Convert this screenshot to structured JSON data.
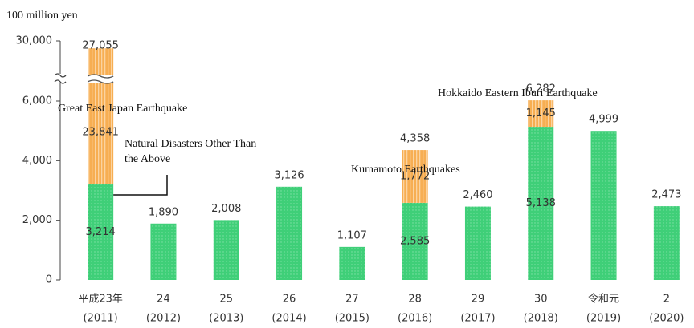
{
  "chart_data": {
    "type": "bar",
    "unit_label": "100 million yen",
    "categories": [
      "平成23年",
      "24",
      "25",
      "26",
      "27",
      "28",
      "29",
      "30",
      "令和元",
      "2"
    ],
    "years": [
      "(2011)",
      "(2012)",
      "(2013)",
      "(2014)",
      "(2015)",
      "(2016)",
      "(2017)",
      "(2018)",
      "(2019)",
      "(2020)"
    ],
    "series": [
      {
        "name": "Natural Disasters Other Than the Above",
        "color": "#3fcf78",
        "values": [
          3214,
          1890,
          2008,
          3126,
          1107,
          2585,
          2460,
          5138,
          4999,
          2473
        ],
        "value_labels": [
          "3,214",
          null,
          null,
          null,
          null,
          "2,585",
          null,
          "5,138",
          null,
          null
        ]
      },
      {
        "color": "#f7ae52",
        "labels": [
          "Great East Japan Earthquake",
          null,
          null,
          null,
          null,
          "Kumamoto Earthquakes",
          null,
          "Hokkaido Eastern Iburi Earthquake",
          null,
          null
        ],
        "values": [
          23841,
          null,
          null,
          null,
          null,
          1772,
          null,
          1145,
          null,
          null
        ],
        "value_labels": [
          "23,841",
          null,
          null,
          null,
          null,
          "1,772",
          null,
          "1,145",
          null,
          null
        ]
      }
    ],
    "totals": {
      "values": [
        27055,
        1890,
        2008,
        3126,
        1107,
        4358,
        2460,
        6282,
        4999,
        2473
      ],
      "value_labels": [
        "27,055",
        "1,890",
        "2,008",
        "3,126",
        "1,107",
        "4,358",
        "2,460",
        "6,282",
        "4,999",
        "2,473"
      ]
    },
    "ylim": [
      0,
      30000
    ],
    "yticks": [
      0,
      {
        "value": 2000,
        "label": "2,000"
      },
      {
        "value": 4000,
        "label": "4,000"
      },
      {
        "value": 6000,
        "label": "6,000"
      },
      {
        "value": 30000,
        "label": "30,000"
      }
    ],
    "broken_axis": true,
    "grid": false
  }
}
